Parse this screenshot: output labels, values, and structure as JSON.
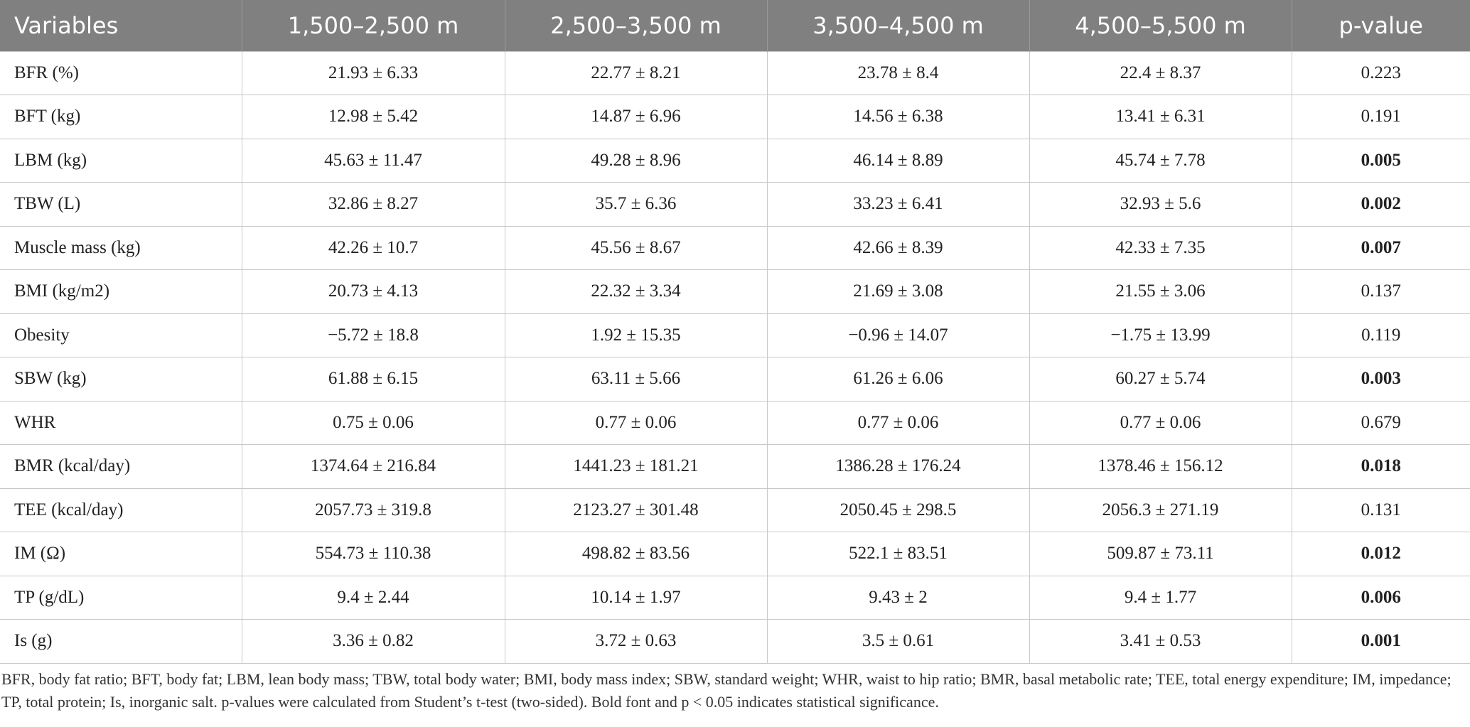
{
  "table": {
    "header": [
      "Variables",
      "1,500–2,500 m",
      "2,500–3,500 m",
      "3,500–4,500 m",
      "4,500–5,500 m",
      "p-value"
    ],
    "rows": [
      {
        "cells": [
          "BFR (%)",
          "21.93 ± 6.33",
          "22.77 ± 8.21",
          "23.78 ± 8.4",
          "22.4 ± 8.37",
          "0.223"
        ],
        "bold": false
      },
      {
        "cells": [
          "BFT (kg)",
          "12.98 ± 5.42",
          "14.87 ± 6.96",
          "14.56 ± 6.38",
          "13.41 ± 6.31",
          "0.191"
        ],
        "bold": false
      },
      {
        "cells": [
          "LBM (kg)",
          "45.63 ± 11.47",
          "49.28 ± 8.96",
          "46.14 ± 8.89",
          "45.74 ± 7.78",
          "0.005"
        ],
        "bold": true
      },
      {
        "cells": [
          "TBW (L)",
          "32.86 ± 8.27",
          "35.7 ± 6.36",
          "33.23 ± 6.41",
          "32.93 ± 5.6",
          "0.002"
        ],
        "bold": true
      },
      {
        "cells": [
          "Muscle mass (kg)",
          "42.26 ± 10.7",
          "45.56 ± 8.67",
          "42.66 ± 8.39",
          "42.33 ± 7.35",
          "0.007"
        ],
        "bold": true
      },
      {
        "cells": [
          "BMI (kg/m2)",
          "20.73 ± 4.13",
          "22.32 ± 3.34",
          "21.69 ± 3.08",
          "21.55 ± 3.06",
          "0.137"
        ],
        "bold": false
      },
      {
        "cells": [
          "Obesity",
          "−5.72 ± 18.8",
          "1.92 ± 15.35",
          "−0.96 ± 14.07",
          "−1.75 ± 13.99",
          "0.119"
        ],
        "bold": false
      },
      {
        "cells": [
          "SBW (kg)",
          "61.88 ± 6.15",
          "63.11 ± 5.66",
          "61.26 ± 6.06",
          "60.27 ± 5.74",
          "0.003"
        ],
        "bold": true
      },
      {
        "cells": [
          "WHR",
          "0.75 ± 0.06",
          "0.77 ± 0.06",
          "0.77 ± 0.06",
          "0.77 ± 0.06",
          "0.679"
        ],
        "bold": false
      },
      {
        "cells": [
          "BMR (kcal/day)",
          "1374.64 ± 216.84",
          "1441.23 ± 181.21",
          "1386.28 ± 176.24",
          "1378.46 ± 156.12",
          "0.018"
        ],
        "bold": true
      },
      {
        "cells": [
          "TEE (kcal/day)",
          "2057.73 ± 319.8",
          "2123.27 ± 301.48",
          "2050.45 ± 298.5",
          "2056.3 ± 271.19",
          "0.131"
        ],
        "bold": false
      },
      {
        "cells": [
          "IM (Ω)",
          "554.73 ± 110.38",
          "498.82 ± 83.56",
          "522.1 ± 83.51",
          "509.87 ± 73.11",
          "0.012"
        ],
        "bold": true
      },
      {
        "cells": [
          "TP (g/dL)",
          "9.4 ± 2.44",
          "10.14 ± 1.97",
          "9.43 ± 2",
          "9.4 ± 1.77",
          "0.006"
        ],
        "bold": true
      },
      {
        "cells": [
          "Is (g)",
          "3.36 ± 0.82",
          "3.72 ± 0.63",
          "3.5 ± 0.61",
          "3.41 ± 0.53",
          "0.001"
        ],
        "bold": true
      }
    ],
    "footnote": "BFR, body fat ratio; BFT, body fat; LBM, lean body mass; TBW, total body water; BMI, body mass index; SBW, standard weight; WHR, waist to hip ratio; BMR, basal metabolic rate; TEE, total energy expenditure; IM, impedance; TP, total protein; Is, inorganic salt. p-values were calculated from Student’s t-test (two-sided). Bold font and p < 0.05 indicates statistical significance."
  }
}
